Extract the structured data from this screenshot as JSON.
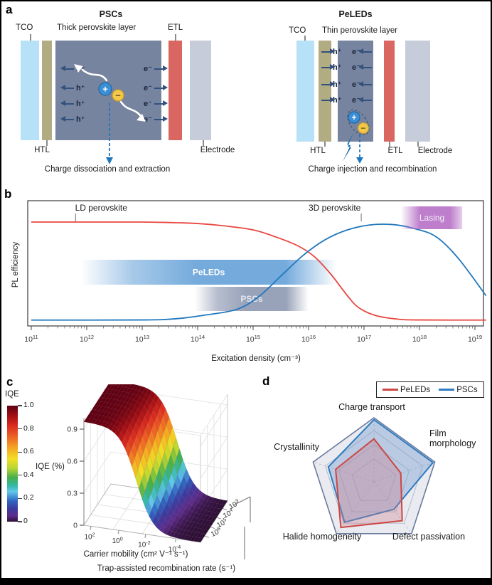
{
  "panel_letters": {
    "a": "a",
    "b": "b",
    "c": "c",
    "d": "d"
  },
  "panel_a": {
    "psc": {
      "title": "PSCs",
      "layer_label": "Thick perovskite layer",
      "tco": "TCO",
      "htl": "HTL",
      "etl": "ETL",
      "electrode": "Electrode",
      "hole": "h⁺",
      "electron": "e⁻",
      "carrier_rows": 4,
      "caption": "Charge dissociation and extraction"
    },
    "peled": {
      "title": "PeLEDs",
      "layer_label": "Thin perovskite layer",
      "tco": "TCO",
      "htl": "HTL",
      "etl": "ETL",
      "electrode": "Electrode",
      "hole": "h⁺",
      "electron": "e⁻",
      "carrier_rows": 4,
      "caption": "Charge injection and recombination"
    },
    "colors": {
      "tco": "#b7e1f6",
      "htl": "#b2ac83",
      "perovskite": "#76849f",
      "etl": "#d96661",
      "electrode": "#c6ccd9",
      "arrow": "#33517e",
      "plus_circle": "#3b8fd4",
      "minus_circle": "#f2c84b",
      "dashed_arrow": "#2077bd"
    }
  },
  "chart_data": [
    {
      "panel": "b",
      "type": "line",
      "xlabel": "Excitation density (cm⁻³)",
      "ylabel": "PL efficiency",
      "x_scale": "log",
      "x_range_exp": [
        11,
        19
      ],
      "x_tick_labels": [
        "10^11",
        "10^12",
        "10^13",
        "10^14",
        "10^15",
        "10^16",
        "10^17",
        "10^18",
        "10^19"
      ],
      "grid": false,
      "y_axis_ticks": "none",
      "series": [
        {
          "name": "LD perovskite",
          "color": "#e8473f",
          "points_exp_v": [
            [
              11,
              1
            ],
            [
              12,
              1
            ],
            [
              13,
              1
            ],
            [
              13.5,
              0.995
            ],
            [
              14,
              0.985
            ],
            [
              14.5,
              0.96
            ],
            [
              15,
              0.92
            ],
            [
              15.4,
              0.85
            ],
            [
              15.8,
              0.76
            ],
            [
              16.1,
              0.65
            ],
            [
              16.4,
              0.47
            ],
            [
              16.7,
              0.25
            ],
            [
              16.9,
              0.13
            ],
            [
              17.2,
              0.05
            ],
            [
              17.6,
              0.012
            ],
            [
              18,
              0.003
            ],
            [
              19.2,
              0.002
            ]
          ]
        },
        {
          "name": "3D perovskite",
          "color": "#2077bd",
          "points_exp_v": [
            [
              11,
              0.002
            ],
            [
              13,
              0.003
            ],
            [
              13.6,
              0.015
            ],
            [
              14.1,
              0.05
            ],
            [
              14.7,
              0.11
            ],
            [
              15.1,
              0.24
            ],
            [
              15.5,
              0.45
            ],
            [
              15.9,
              0.66
            ],
            [
              16.3,
              0.82
            ],
            [
              16.7,
              0.92
            ],
            [
              17.1,
              0.97
            ],
            [
              17.5,
              0.975
            ],
            [
              17.9,
              0.935
            ],
            [
              18.3,
              0.85
            ],
            [
              18.7,
              0.63
            ],
            [
              19.2,
              0.25
            ]
          ]
        }
      ],
      "bands": [
        {
          "label": "PeLEDs",
          "from_exp": 11.9,
          "to_exp": 16.5,
          "color": "#6da6da",
          "text_color": "#ffffff"
        },
        {
          "label": "PSCs",
          "from_exp": 13.95,
          "to_exp": 16.0,
          "color": "#8f9ab3",
          "text_color": "#e6e9f1"
        }
      ],
      "lasing": {
        "label": "Lasing",
        "from_exp": 17.68,
        "to_exp": 18.77,
        "color": "#b873c8",
        "text_color": "#f6eef8"
      },
      "annotations": [
        {
          "label": "LD perovskite",
          "center_exp": 12.26,
          "tick_exp": 11.8
        },
        {
          "label": "3D perovskite",
          "center_exp": 16.47,
          "tick_exp": 16.95
        }
      ]
    },
    {
      "panel": "c",
      "type": "surface3d",
      "colorbar": {
        "title": "IQE",
        "tick_labels": [
          "1.0",
          "0.8",
          "0.6",
          "0.4",
          "0.2",
          "0"
        ],
        "stops": [
          [
            "#5e0013",
            0
          ],
          [
            "#9c0d13",
            0.08
          ],
          [
            "#d92a20",
            0.17
          ],
          [
            "#ee6424",
            0.27
          ],
          [
            "#f4a322",
            0.36
          ],
          [
            "#f1df25",
            0.46
          ],
          [
            "#b8d633",
            0.54
          ],
          [
            "#45ae4b",
            0.62
          ],
          [
            "#35b8a8",
            0.69
          ],
          [
            "#62c8ea",
            0.74
          ],
          [
            "#2f66c2",
            0.82
          ],
          [
            "#3c3a9e",
            0.89
          ],
          [
            "#5e2d8c",
            0.95
          ],
          [
            "#2c0e34",
            1
          ]
        ]
      },
      "zlabel": "IQE (%)",
      "z_tick_labels": [
        "0.9",
        "0.6",
        "0.3",
        "0"
      ],
      "xlabel": "Carrier mobility (cm² V⁻¹ s⁻¹)",
      "x_tick_labels": [
        "10^2",
        "10^0",
        "10^-2",
        "10^-4"
      ],
      "ylabel": "Trap-assisted recombination rate (s⁻¹)",
      "y_tick_labels": [
        "10^3",
        "10^4",
        "10^5",
        "10^6"
      ],
      "surface": {
        "plateau": 0.97,
        "cliff_center": 0.45,
        "cliff_skew": 0.12,
        "steepness": 14
      }
    },
    {
      "panel": "d",
      "type": "radar",
      "categories": [
        "Charge transport",
        "Film morphology",
        "Defect passivation",
        "Halide homogeneity",
        "Crystallinity"
      ],
      "max": 1.0,
      "rings": [
        0.36,
        0.58,
        0.8,
        1.0
      ],
      "series": [
        {
          "name": "PeLEDs",
          "color": "#cc4743",
          "fill": "rgba(205,125,140,0.35)",
          "values": [
            0.67,
            0.44,
            0.75,
            0.88,
            0.63
          ]
        },
        {
          "name": "PSCs",
          "color": "#2e7bbf",
          "fill": "rgba(126,162,208,0.45)",
          "values": [
            0.97,
            0.97,
            0.53,
            0.78,
            0.75
          ]
        }
      ],
      "legend_position": "top-right"
    }
  ]
}
